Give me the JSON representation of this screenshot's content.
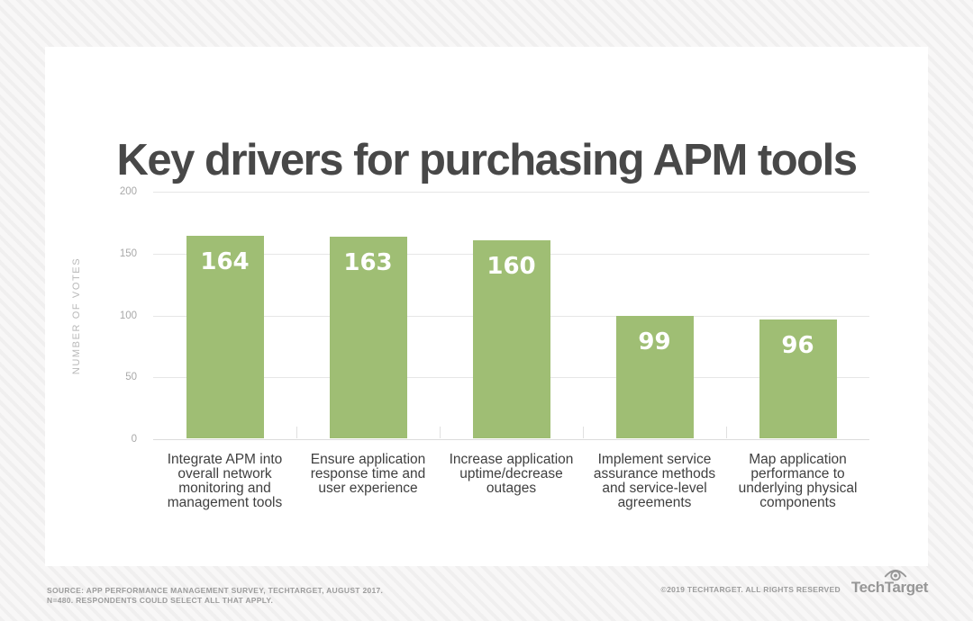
{
  "page": {
    "footer": {
      "source_line1": "SOURCE: APP PERFORMANCE MANAGEMENT SURVEY, TECHTARGET, AUGUST 2017.",
      "source_line2": "N=480. RESPONDENTS COULD SELECT ALL THAT APPLY.",
      "copyright": "©2019 TECHTARGET. ALL RIGHTS RESERVED",
      "brand": "TechTarget",
      "brand_icon": "eye-icon"
    }
  },
  "chart_data": {
    "type": "bar",
    "title": "Key drivers for purchasing APM tools",
    "categories": [
      "Integrate APM into overall network monitoring and management tools",
      "Ensure application response time and user experience",
      "Increase application uptime/decrease outages",
      "Implement service assurance methods and service-level agreements",
      "Map application performance to underlying physical components"
    ],
    "values": [
      164,
      163,
      160,
      99,
      96
    ],
    "xlabel": "",
    "ylabel": "NUMBER OF VOTES",
    "ylim": [
      0,
      200
    ],
    "yticks": [
      0,
      50,
      100,
      150,
      200
    ],
    "grid": true,
    "legend": "none",
    "colors": {
      "bar": "#9fbe74",
      "value_label": "#ffffff",
      "title": "#484848",
      "tick_label": "#a9a9a9",
      "axis_title": "#b9b9b9",
      "gridline": "#e6e6e6",
      "category_label": "#3f3f3f",
      "footer_text": "#9c9c9c",
      "card_background": "#ffffff"
    }
  }
}
